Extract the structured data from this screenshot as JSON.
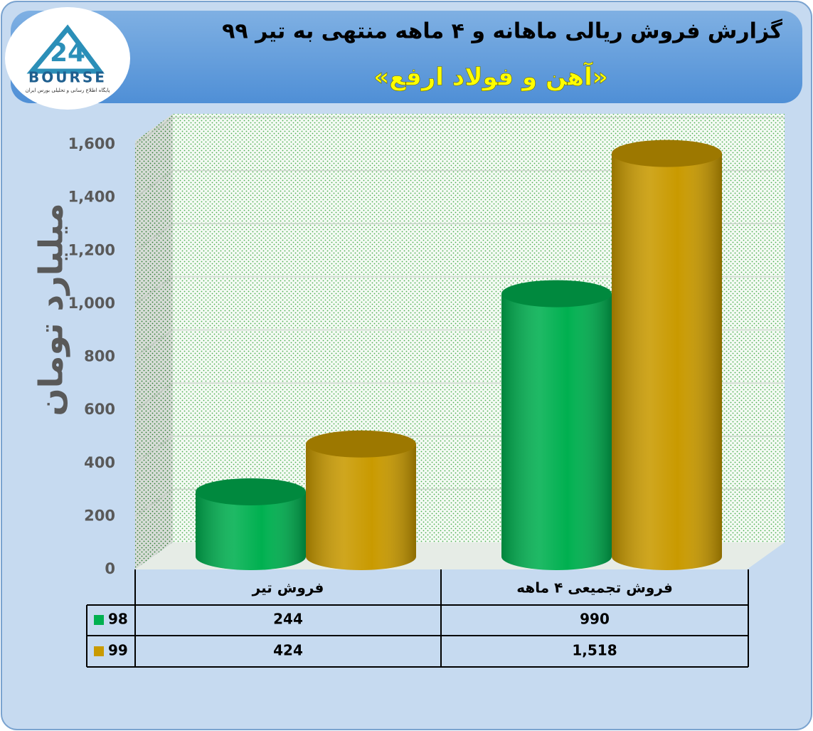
{
  "logo": {
    "mark": "24",
    "name": "BOURSE",
    "tagline": "پایگاه اطلاع رسانی و تحلیلی بورس ایران"
  },
  "chart_data": {
    "type": "bar",
    "title": "گزارش فروش ریالی ماهانه و ۴ ماهه منتهی به تیر ۹۹",
    "subtitle": "«آهن و فولاد ارفع»",
    "y_label": "میلیارد تومان",
    "categories": [
      "فروش تیر",
      "فروش تجمیعی ۴ ماهه"
    ],
    "series": [
      {
        "name": "98",
        "color": "#00b050",
        "values": [
          244,
          990
        ]
      },
      {
        "name": "99",
        "color": "#c99a00",
        "values": [
          424,
          1518
        ],
        "value_labels": [
          "424",
          "1,518"
        ]
      }
    ],
    "ylim": [
      0,
      1600
    ],
    "yticks": [
      0,
      200,
      400,
      600,
      800,
      {
        "value": 1000,
        "label": "1,000"
      },
      {
        "value": 1200,
        "label": "1,200"
      },
      {
        "value": 1400,
        "label": "1,400"
      },
      {
        "value": 1600,
        "label": "1,600"
      }
    ],
    "grid": true
  }
}
